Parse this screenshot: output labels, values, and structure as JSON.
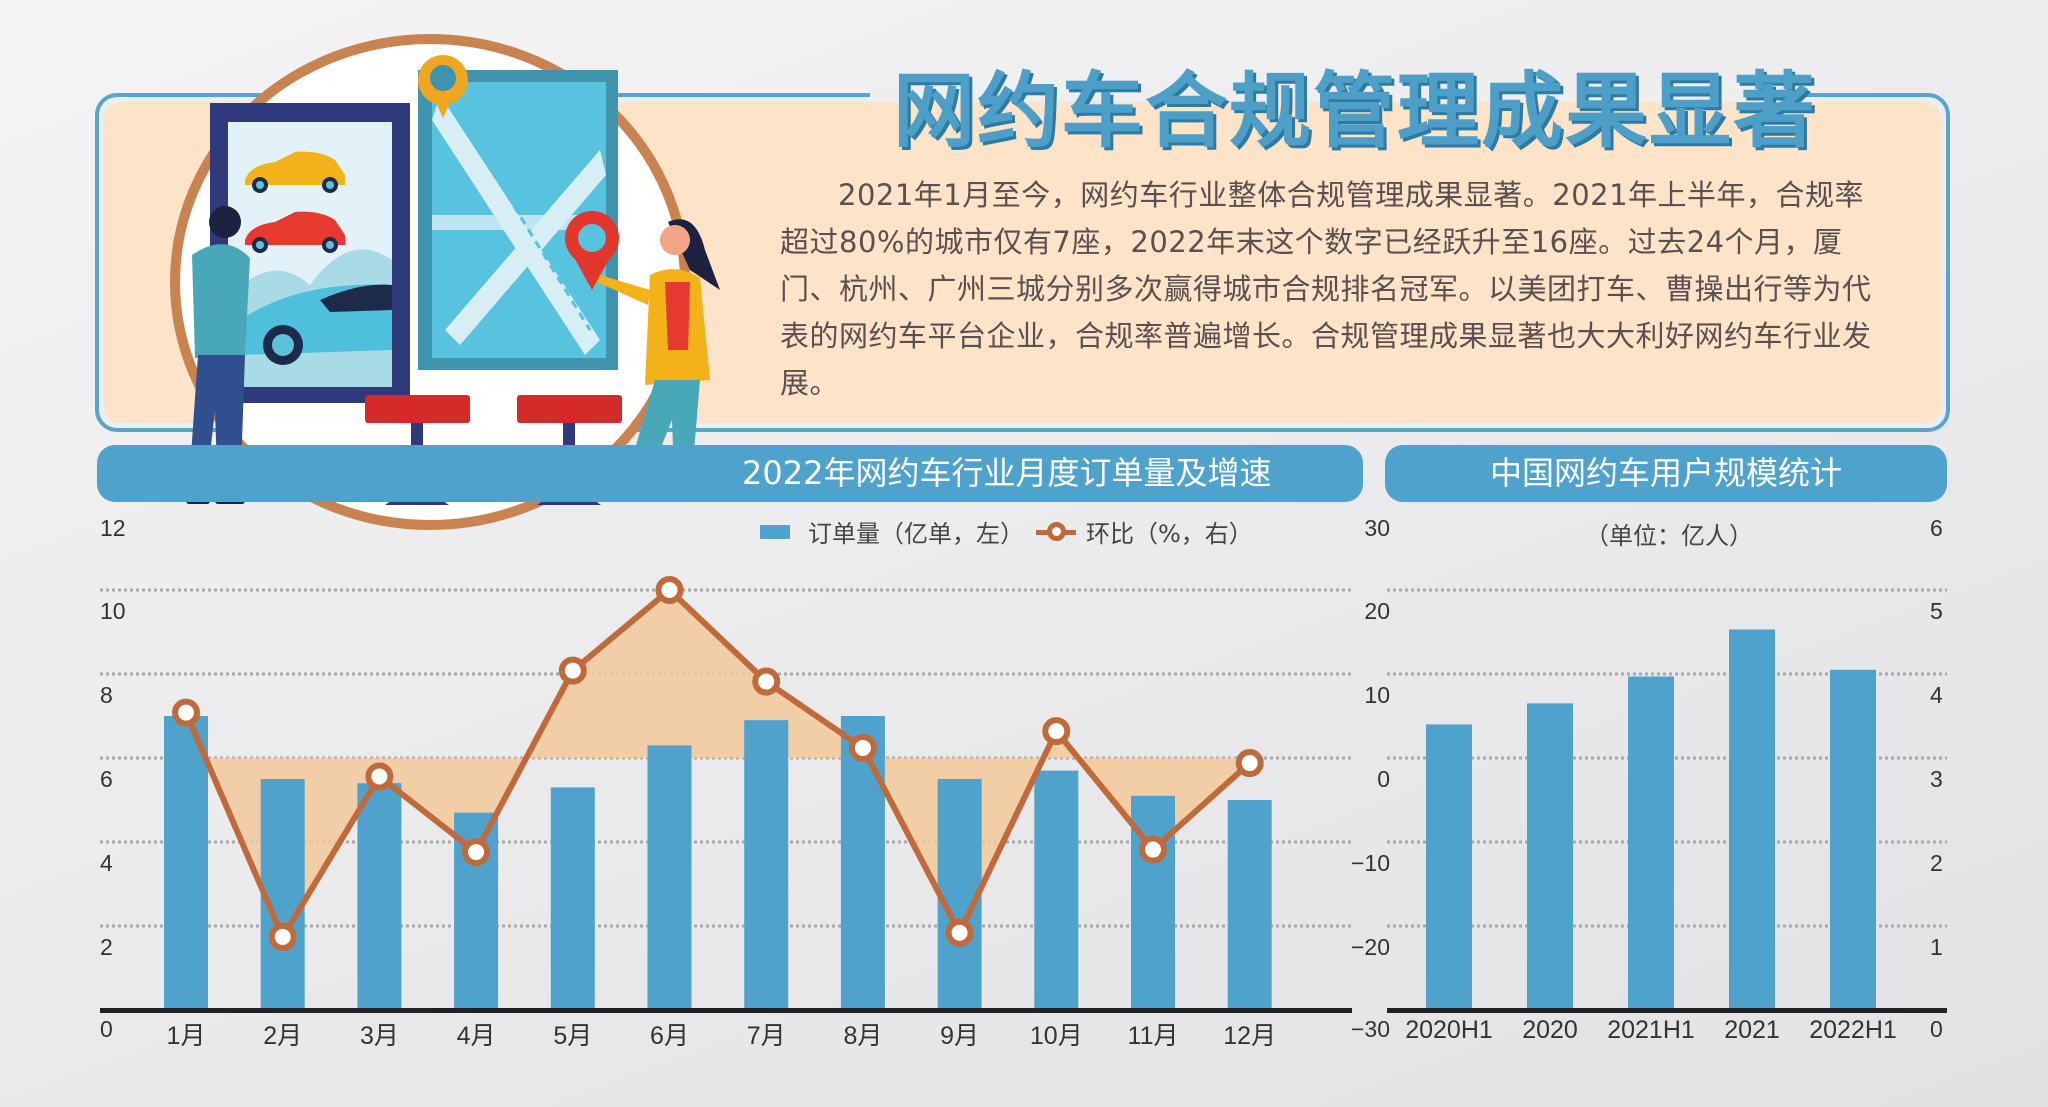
{
  "title": "网约车合规管理成果显著",
  "intro": "2021年1月至今，网约车行业整体合规管理成果显著。2021年上半年，合规率超过80%的城市仅有7座，2022年末这个数字已经跃升至16座。过去24个月，厦门、杭州、广州三城分别多次赢得城市合规排名冠军。以美团打车、曹操出行等为代表的网约车平台企业，合规率普遍增长。合规管理成果显著也大大利好网约车行业发展。",
  "illustration": {
    "description": "Two people in front of a car-selection kiosk screen and a city map board with location pins, two red stools"
  },
  "colors": {
    "bar": "#4fa2cb",
    "line": "#c0693a",
    "area_fill": "#f2c99a",
    "intro_bg": "#fde3c8",
    "title": "#4d9fc8"
  },
  "left_chart": {
    "header": "2022年网约车行业月度订单量及增速",
    "legend": {
      "bar_label": "订单量（亿单，左）",
      "line_label": "环比（%，右）"
    },
    "left_ticks": [
      "12",
      "10",
      "8",
      "6",
      "4",
      "2",
      "0"
    ],
    "right_ticks": [
      "30",
      "20",
      "10",
      "0",
      "−10",
      "−20",
      "−30"
    ]
  },
  "right_chart": {
    "header": "中国网约车用户规模统计",
    "unit": "（单位：亿人）",
    "ticks": [
      "6",
      "5",
      "4",
      "3",
      "2",
      "1",
      "0"
    ]
  },
  "chart_data": [
    {
      "type": "bar",
      "title": "2022年网约车行业月度订单量及增速",
      "categories": [
        "1月",
        "2月",
        "3月",
        "4月",
        "5月",
        "6月",
        "7月",
        "8月",
        "9月",
        "10月",
        "11月",
        "12月"
      ],
      "series": [
        {
          "name": "订单量（亿单，左）",
          "type": "bar",
          "axis": "left",
          "values": [
            7.0,
            5.5,
            5.4,
            4.7,
            5.3,
            6.3,
            6.9,
            7.0,
            5.5,
            5.7,
            5.1,
            5.0
          ]
        },
        {
          "name": "环比（%，右）",
          "type": "line",
          "axis": "right",
          "values": [
            5.4,
            -21.3,
            -2.2,
            -11.2,
            10.4,
            20.0,
            9.1,
            1.2,
            -20.8,
            3.2,
            -10.9,
            -0.6
          ]
        }
      ],
      "xlabel": "",
      "ylabel_left": "订单量（亿单）",
      "ylabel_right": "环比（%）",
      "ylim_left": [
        0,
        12
      ],
      "ylim_right": [
        -30,
        30
      ],
      "grid": true,
      "legend_position": "top"
    },
    {
      "type": "bar",
      "title": "中国网约车用户规模统计",
      "subtitle": "（单位：亿人）",
      "categories": [
        "2020H1",
        "2020",
        "2021H1",
        "2021",
        "2022H1"
      ],
      "values": [
        3.4,
        3.65,
        3.97,
        4.53,
        4.05
      ],
      "xlabel": "",
      "ylabel": "亿人",
      "ylim": [
        0,
        6
      ],
      "grid": true
    }
  ]
}
